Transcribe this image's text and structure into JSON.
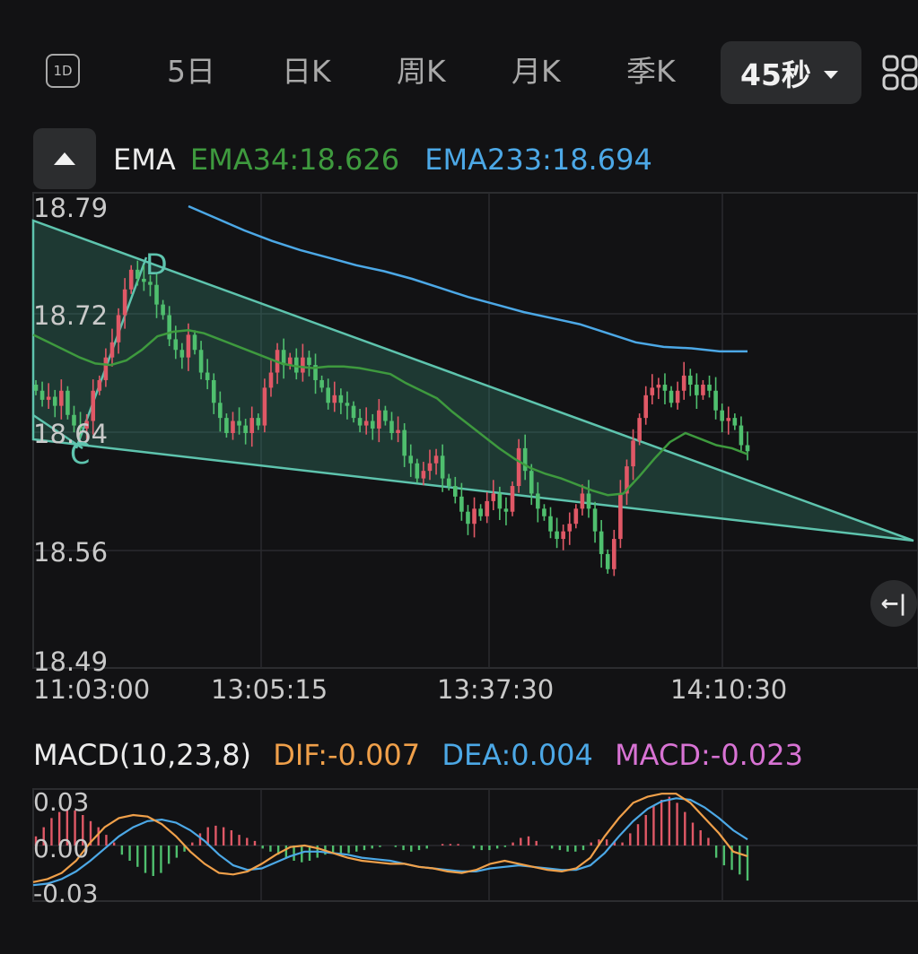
{
  "tabs": {
    "icon_1d": "1D",
    "items": [
      "5日",
      "日K",
      "周K",
      "月K",
      "季K"
    ],
    "active": "45秒"
  },
  "legend": {
    "ema_label": "EMA",
    "ema34": "EMA34:18.626",
    "ema233": "EMA233:18.694"
  },
  "macd_legend": {
    "label": "MACD(10,23,8)",
    "dif": "DIF:-0.007",
    "dea": "DEA:0.004",
    "macd": "MACD:-0.023"
  },
  "colors": {
    "ema34": "#3e9a3e",
    "ema233": "#4ca8e6",
    "dif": "#f0a04a",
    "dea": "#4ca8e6",
    "macd": "#d873d4",
    "up": "#e05866",
    "down": "#4fbf6e",
    "trendline": "#5ec4ae"
  },
  "chart_data": [
    {
      "type": "candlestick",
      "title": "EMA",
      "x_ticks": [
        "11:03:00",
        "13:05:15",
        "13:37:30",
        "14:10:30"
      ],
      "y_ticks": [
        "18.79",
        "18.72",
        "18.64",
        "18.56",
        "18.49"
      ],
      "ylim": [
        18.49,
        18.79
      ],
      "grid": true,
      "closes": [
        18.668,
        18.662,
        18.664,
        18.658,
        18.668,
        18.652,
        18.645,
        18.643,
        18.648,
        18.668,
        18.675,
        18.69,
        18.7,
        18.718,
        18.735,
        18.748,
        18.742,
        18.74,
        18.738,
        18.725,
        18.718,
        18.702,
        18.695,
        18.69,
        18.705,
        18.695,
        18.68,
        18.675,
        18.66,
        18.65,
        18.64,
        18.648,
        18.645,
        18.64,
        18.65,
        18.645,
        18.67,
        18.68,
        18.695,
        18.685,
        18.69,
        18.68,
        18.69,
        18.685,
        18.675,
        18.67,
        18.66,
        18.665,
        18.66,
        18.658,
        18.65,
        18.645,
        18.648,
        18.643,
        18.655,
        18.648,
        18.64,
        18.642,
        18.625,
        18.62,
        18.61,
        18.615,
        18.62,
        18.625,
        18.61,
        18.605,
        18.598,
        18.588,
        18.58,
        18.59,
        18.585,
        18.595,
        18.6,
        18.59,
        18.588,
        18.605,
        18.63,
        18.615,
        18.6,
        18.59,
        18.585,
        18.575,
        18.57,
        18.575,
        18.58,
        18.59,
        18.6,
        18.59,
        18.575,
        18.56,
        18.55,
        18.57,
        18.6,
        18.618,
        18.635,
        18.65,
        18.665,
        18.67,
        18.672,
        18.668,
        18.66,
        18.668,
        18.678,
        18.672,
        18.665,
        18.672,
        18.668,
        18.655,
        18.648,
        18.65,
        18.645,
        18.632,
        18.628
      ],
      "ema34": [
        18.705,
        18.7,
        18.695,
        18.69,
        18.686,
        18.685,
        18.688,
        18.695,
        18.704,
        18.707,
        18.708,
        18.706,
        18.702,
        18.698,
        18.694,
        18.69,
        18.686,
        18.684,
        18.683,
        18.684,
        18.684,
        18.683,
        18.681,
        18.679,
        18.673,
        18.668,
        18.663,
        18.654,
        18.646,
        18.638,
        18.63,
        18.623,
        18.617,
        18.613,
        18.61,
        18.606,
        18.602,
        18.599,
        18.6,
        18.611,
        18.623,
        18.634,
        18.64,
        18.636,
        18.632,
        18.63,
        18.626
      ],
      "ema233": [
        18.79,
        18.782,
        18.774,
        18.767,
        18.761,
        18.756,
        18.751,
        18.747,
        18.742,
        18.736,
        18.73,
        18.725,
        18.72,
        18.716,
        18.712,
        18.706,
        18.7,
        18.697,
        18.696,
        18.694,
        18.694
      ],
      "pattern_labels": [
        "D",
        "C"
      ]
    },
    {
      "type": "bar",
      "title": "MACD(10,23,8)",
      "y_ticks": [
        "0.03",
        "0.00",
        "-0.03"
      ],
      "ylim": [
        -0.038,
        0.038
      ],
      "series": [
        {
          "name": "DIF",
          "values": [
            -0.024,
            -0.022,
            -0.018,
            -0.01,
            0.002,
            0.012,
            0.018,
            0.02,
            0.019,
            0.014,
            0.006,
            -0.004,
            -0.012,
            -0.018,
            -0.019,
            -0.017,
            -0.012,
            -0.006,
            -0.001,
            0.0,
            -0.002,
            -0.005,
            -0.008,
            -0.01,
            -0.011,
            -0.012,
            -0.012,
            -0.014,
            -0.015,
            -0.017,
            -0.018,
            -0.016,
            -0.012,
            -0.01,
            -0.012,
            -0.014,
            -0.016,
            -0.017,
            -0.015,
            -0.008,
            0.006,
            0.018,
            0.028,
            0.032,
            0.034,
            0.034,
            0.028,
            0.018,
            0.008,
            -0.004,
            -0.007
          ]
        },
        {
          "name": "DEA",
          "values": [
            -0.026,
            -0.025,
            -0.022,
            -0.017,
            -0.01,
            -0.002,
            0.006,
            0.012,
            0.016,
            0.017,
            0.015,
            0.01,
            0.003,
            -0.006,
            -0.013,
            -0.016,
            -0.015,
            -0.011,
            -0.007,
            -0.004,
            -0.004,
            -0.005,
            -0.006,
            -0.008,
            -0.009,
            -0.01,
            -0.012,
            -0.014,
            -0.015,
            -0.016,
            -0.017,
            -0.017,
            -0.015,
            -0.014,
            -0.013,
            -0.014,
            -0.015,
            -0.016,
            -0.016,
            -0.013,
            -0.005,
            0.006,
            0.016,
            0.024,
            0.029,
            0.031,
            0.03,
            0.025,
            0.018,
            0.01,
            0.004
          ]
        },
        {
          "name": "MACD",
          "values": [
            0.006,
            0.012,
            0.018,
            0.022,
            0.024,
            0.023,
            0.02,
            0.016,
            0.012,
            0.007,
            0.002,
            -0.006,
            -0.01,
            -0.014,
            -0.018,
            -0.02,
            -0.018,
            -0.012,
            -0.008,
            -0.004,
            0.002,
            0.008,
            0.012,
            0.013,
            0.012,
            0.01,
            0.007,
            0.005,
            0.003,
            -0.002,
            -0.004,
            -0.006,
            -0.008,
            -0.01,
            -0.011,
            -0.01,
            -0.008,
            -0.006,
            -0.005,
            -0.006,
            -0.005,
            -0.004,
            -0.003,
            -0.002,
            -0.001,
            0.0,
            -0.001,
            -0.003,
            -0.004,
            -0.003,
            -0.002,
            0.0,
            0.001,
            0.001,
            0.001,
            0.0,
            -0.002,
            -0.003,
            -0.003,
            -0.002,
            -0.001,
            0.002,
            0.005,
            0.006,
            0.003,
            0.0,
            -0.002,
            -0.003,
            -0.004,
            -0.004,
            -0.003,
            0.002,
            0.004,
            0.004,
            0.003,
            0.002,
            0.008,
            0.014,
            0.02,
            0.026,
            0.03,
            0.032,
            0.028,
            0.022,
            0.015,
            0.01,
            0.005,
            -0.008,
            -0.013,
            -0.016,
            -0.019,
            -0.023
          ]
        }
      ]
    }
  ]
}
